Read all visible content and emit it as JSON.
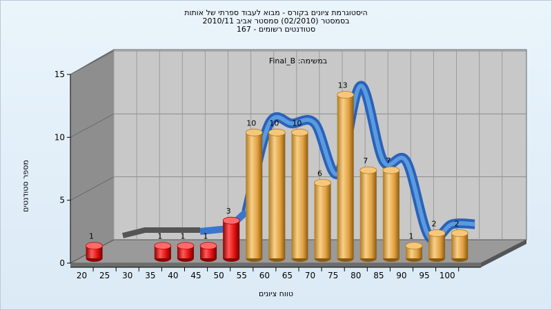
{
  "chart_data": {
    "type": "bar",
    "title_lines": [
      "היסטוגרמת ציונים בקורס - מבוא לעבוד ספרתי של אותות",
      "בסמסטר  (02/2010)  סמסטר אביב 2010/11",
      "סטודנטים רשומים - 167"
    ],
    "annotation": "Final_B :במשימה",
    "xlabel": "טווח ציונים",
    "ylabel": "מספר סטודנטים",
    "ylim": [
      0,
      15
    ],
    "yticks": [
      "0",
      "5",
      "10",
      "15"
    ],
    "ytick_values": [
      0,
      5,
      10,
      15
    ],
    "categories": [
      "20",
      "25",
      "30",
      "35",
      "40",
      "45",
      "50",
      "55",
      "60",
      "65",
      "70",
      "75",
      "80",
      "85",
      "90",
      "95",
      "100"
    ],
    "values": [
      1,
      0,
      0,
      1,
      1,
      1,
      3,
      10,
      10,
      10,
      6,
      13,
      7,
      7,
      1,
      2,
      2
    ],
    "bar_colors": [
      "red",
      "none",
      "none",
      "red",
      "red",
      "red",
      "red",
      "orange",
      "orange",
      "orange",
      "orange",
      "orange",
      "orange",
      "orange",
      "orange",
      "orange",
      "orange"
    ],
    "colors": {
      "fail": "#e01010",
      "pass": "#e8a84a",
      "curve": "#3a76cc"
    },
    "grid": true
  }
}
